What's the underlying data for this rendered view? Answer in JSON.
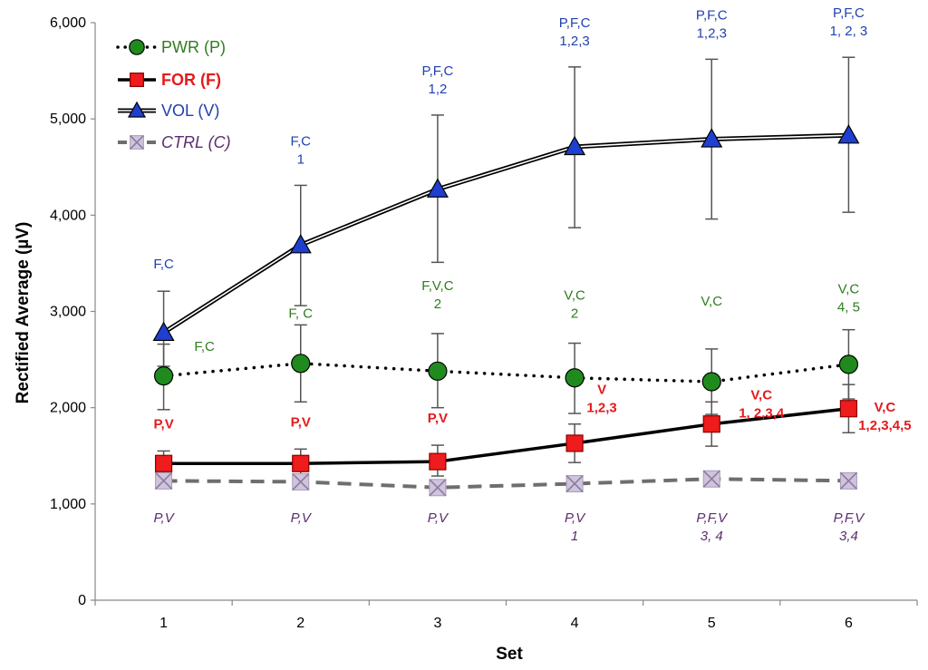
{
  "chart_data": {
    "type": "line",
    "xlabel": "Set",
    "ylabel": "Rectified Average (µV)",
    "ylim": [
      0,
      6000
    ],
    "yticks": [
      "0",
      "1,000",
      "2,000",
      "3,000",
      "4,000",
      "5,000",
      "6,000"
    ],
    "categories": [
      "1",
      "2",
      "3",
      "4",
      "5",
      "6"
    ],
    "legend_position": "top-left",
    "series": [
      {
        "name": "PWR (P)",
        "key": "pwr",
        "color": "#2e7d1e",
        "line": "dotted",
        "marker": "circle",
        "values": [
          2330,
          2460,
          2380,
          2310,
          2270,
          2450
        ],
        "err_low": [
          1980,
          2060,
          2000,
          1940,
          1930,
          2090
        ],
        "err_high": [
          2660,
          2860,
          2770,
          2670,
          2610,
          2810
        ],
        "labels": [
          {
            "text": "F,C",
            "anchor": 2460,
            "dx": 45,
            "dy": -14
          },
          {
            "text": "F, C",
            "anchor": 2860,
            "dx": 0,
            "dy": -8
          },
          {
            "text": "F,V,C",
            "anchor": 2770,
            "dx": 0,
            "dy": -48
          },
          {
            "text": "V,C",
            "anchor": 2670,
            "dx": 0,
            "dy": -48
          },
          {
            "text": "V,C",
            "anchor": 2610,
            "dx": 0,
            "dy": -48
          },
          {
            "text": "V,C",
            "anchor": 2810,
            "dx": 0,
            "dy": -40
          }
        ],
        "labels2": [
          "",
          "",
          "2",
          "2",
          "",
          "4, 5"
        ]
      },
      {
        "name": "FOR (F)",
        "key": "for",
        "color": "#e41a1c",
        "line": "solid",
        "marker": "square",
        "values": [
          1420,
          1420,
          1440,
          1630,
          1830,
          1990
        ],
        "err_low": [
          1280,
          1260,
          1290,
          1430,
          1600,
          1740
        ],
        "err_high": [
          1550,
          1570,
          1610,
          1830,
          2060,
          2240
        ],
        "labels": [
          {
            "text": "P,V",
            "anchor": 1550,
            "dx": 0,
            "dy": -25
          },
          {
            "text": "P,V",
            "anchor": 1570,
            "dx": 0,
            "dy": -25
          },
          {
            "text": "P,V",
            "anchor": 1610,
            "dx": 0,
            "dy": -25
          },
          {
            "text": "V",
            "anchor": 1830,
            "dx": 30,
            "dy": -33
          },
          {
            "text": "V,C",
            "anchor": 2060,
            "dx": 55,
            "dy": -3
          },
          {
            "text": "V,C",
            "anchor": 2240,
            "dx": 40,
            "dy": 30
          }
        ],
        "labels2": [
          "",
          "",
          "",
          "1,2,3",
          "1, 2,3,4",
          "1,2,3,4,5"
        ]
      },
      {
        "name": "VOL (V)",
        "key": "vol",
        "color": "#2140b0",
        "line": "double",
        "marker": "triangle",
        "values": [
          2780,
          3690,
          4270,
          4710,
          4790,
          4830
        ],
        "err_low": [
          2430,
          3060,
          3510,
          3870,
          3960,
          4030
        ],
        "err_high": [
          3210,
          4310,
          5040,
          5540,
          5620,
          5640
        ],
        "labels": [
          {
            "text": "F,C",
            "anchor": 3210,
            "dx": 0,
            "dy": -25
          },
          {
            "text": "F,C",
            "anchor": 4310,
            "dx": 0,
            "dy": -44
          },
          {
            "text": "P,F,C",
            "anchor": 5040,
            "dx": 0,
            "dy": -44
          },
          {
            "text": "P,F,C",
            "anchor": 5540,
            "dx": 0,
            "dy": -44
          },
          {
            "text": "P,F,C",
            "anchor": 5620,
            "dx": 0,
            "dy": -44
          },
          {
            "text": "P,F,C",
            "anchor": 5640,
            "dx": 0,
            "dy": -44
          }
        ],
        "labels2": [
          "",
          "1",
          "1,2",
          "1,2,3",
          "1,2,3",
          "1, 2, 3"
        ]
      },
      {
        "name": "CTRL (C)",
        "key": "ctrl",
        "color": "#5a2d6e",
        "line": "dashed",
        "marker": "x-square",
        "values": [
          1240,
          1230,
          1170,
          1210,
          1260,
          1240
        ],
        "labels": [
          {
            "text": "P,V",
            "anchor": 1000,
            "dx": 0,
            "dy": 20
          },
          {
            "text": "P,V",
            "anchor": 1000,
            "dx": 0,
            "dy": 20
          },
          {
            "text": "P,V",
            "anchor": 1000,
            "dx": 0,
            "dy": 20
          },
          {
            "text": "P,V",
            "anchor": 1000,
            "dx": 0,
            "dy": 20
          },
          {
            "text": "P,F,V",
            "anchor": 1000,
            "dx": 0,
            "dy": 20
          },
          {
            "text": "P,F,V",
            "anchor": 1000,
            "dx": 0,
            "dy": 20
          }
        ],
        "labels2": [
          "",
          "",
          "",
          "1",
          "3, 4",
          "3,4"
        ]
      }
    ]
  }
}
